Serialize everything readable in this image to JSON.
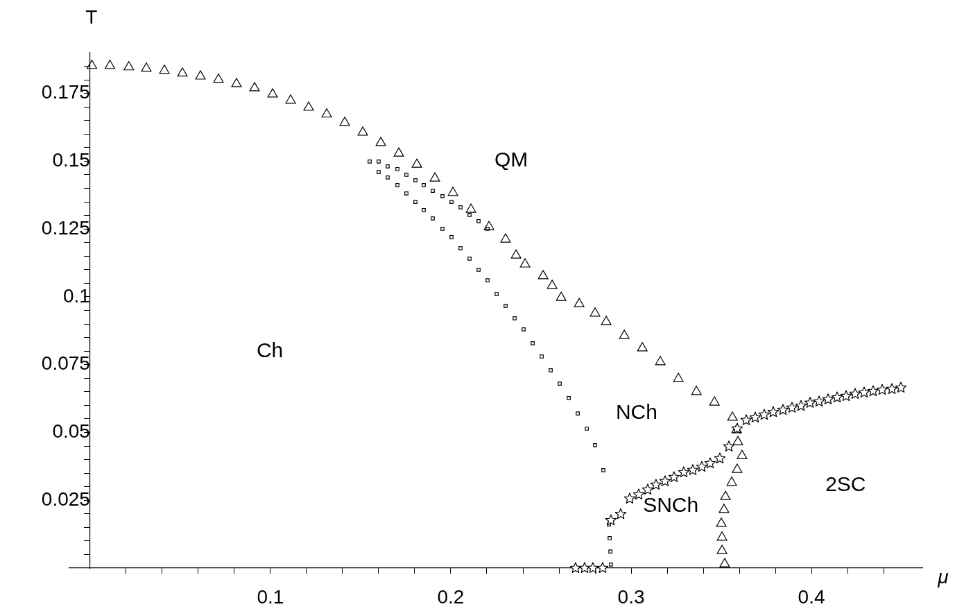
{
  "chart_data": {
    "type": "scatter",
    "xlabel": "μ",
    "ylabel": "T",
    "xlim": [
      -0.0115,
      0.4615
    ],
    "ylim": [
      0,
      0.19
    ],
    "xticks": [
      {
        "value": 0.02,
        "label": null
      },
      {
        "value": 0.04,
        "label": null
      },
      {
        "value": 0.06,
        "label": null
      },
      {
        "value": 0.08,
        "label": null
      },
      0.1,
      {
        "value": 0.12,
        "label": null
      },
      {
        "value": 0.14,
        "label": null
      },
      {
        "value": 0.16,
        "label": null
      },
      {
        "value": 0.18,
        "label": null
      },
      0.2,
      {
        "value": 0.22,
        "label": null
      },
      {
        "value": 0.24,
        "label": null
      },
      {
        "value": 0.26,
        "label": null
      },
      {
        "value": 0.28,
        "label": null
      },
      0.3,
      {
        "value": 0.32,
        "label": null
      },
      {
        "value": 0.34,
        "label": null
      },
      {
        "value": 0.36,
        "label": null
      },
      {
        "value": 0.38,
        "label": null
      },
      0.4,
      {
        "value": 0.42,
        "label": null
      },
      {
        "value": 0.44,
        "label": null
      }
    ],
    "yticks": [
      {
        "value": 0.005,
        "label": null
      },
      {
        "value": 0.01,
        "label": null
      },
      {
        "value": 0.015,
        "label": null
      },
      {
        "value": 0.02,
        "label": null
      },
      0.025,
      {
        "value": 0.03,
        "label": null
      },
      {
        "value": 0.035,
        "label": null
      },
      {
        "value": 0.04,
        "label": null
      },
      {
        "value": 0.045,
        "label": null
      },
      0.05,
      {
        "value": 0.055,
        "label": null
      },
      {
        "value": 0.06,
        "label": null
      },
      {
        "value": 0.065,
        "label": null
      },
      {
        "value": 0.07,
        "label": null
      },
      0.075,
      {
        "value": 0.08,
        "label": null
      },
      {
        "value": 0.085,
        "label": null
      },
      {
        "value": 0.09,
        "label": null
      },
      {
        "value": 0.095,
        "label": null
      },
      0.1,
      {
        "value": 0.105,
        "label": null
      },
      {
        "value": 0.11,
        "label": null
      },
      {
        "value": 0.115,
        "label": null
      },
      {
        "value": 0.12,
        "label": null
      },
      0.125,
      {
        "value": 0.13,
        "label": null
      },
      {
        "value": 0.135,
        "label": null
      },
      {
        "value": 0.14,
        "label": null
      },
      {
        "value": 0.145,
        "label": null
      },
      0.15,
      {
        "value": 0.155,
        "label": null
      },
      {
        "value": 0.16,
        "label": null
      },
      {
        "value": 0.165,
        "label": null
      },
      {
        "value": 0.17,
        "label": null
      },
      0.175,
      {
        "value": 0.18,
        "label": null
      },
      {
        "value": 0.185,
        "label": null
      }
    ],
    "grid": false,
    "legend": false,
    "series": [
      {
        "marker": "triangle",
        "color": "#000000",
        "x": [
          0.001,
          0.011,
          0.0215,
          0.0312,
          0.0412,
          0.0512,
          0.0612,
          0.0712,
          0.0812,
          0.0912,
          0.1012,
          0.1112,
          0.1212,
          0.1312,
          0.1412,
          0.1512,
          0.1612,
          0.1712,
          0.1812,
          0.1912,
          0.2012,
          0.2112,
          0.2212,
          0.2304,
          0.2362,
          0.2412,
          0.2512,
          0.2562,
          0.2612,
          0.2712,
          0.28,
          0.2862,
          0.2962,
          0.3062,
          0.3162,
          0.3262,
          0.3362,
          0.3462,
          0.3562,
          0.3585,
          0.3592,
          0.3615,
          0.3588,
          0.3558,
          0.3523,
          0.3515,
          0.35,
          0.3504,
          0.3504,
          0.3519
        ],
        "values": [
          0.1852,
          0.1852,
          0.1847,
          0.1842,
          0.1834,
          0.1824,
          0.1813,
          0.1801,
          0.1785,
          0.177,
          0.1747,
          0.1724,
          0.1698,
          0.1673,
          0.1642,
          0.1606,
          0.1568,
          0.1529,
          0.1488,
          0.1437,
          0.1384,
          0.1322,
          0.1258,
          0.1212,
          0.1153,
          0.112,
          0.1077,
          0.1041,
          0.0997,
          0.0974,
          0.0939,
          0.0908,
          0.0857,
          0.0811,
          0.076,
          0.0698,
          0.065,
          0.0611,
          0.0555,
          0.0509,
          0.0465,
          0.0414,
          0.0363,
          0.0315,
          0.0263,
          0.0215,
          0.0164,
          0.0113,
          0.0064,
          0.0015
        ]
      },
      {
        "marker": "square",
        "color": "#000000",
        "x": [
          0.155,
          0.16,
          0.165,
          0.1704,
          0.1754,
          0.1804,
          0.185,
          0.19,
          0.1954,
          0.2004,
          0.2054,
          0.2104,
          0.2154,
          0.2204,
          0.16,
          0.165,
          0.1704,
          0.1754,
          0.1804,
          0.185,
          0.19,
          0.1954,
          0.2004,
          0.2054,
          0.2104,
          0.2154,
          0.2204,
          0.2254,
          0.2304,
          0.2354,
          0.2404,
          0.2454,
          0.2504,
          0.2554,
          0.2604,
          0.2654,
          0.2704,
          0.2754,
          0.28,
          0.2846,
          0.2877,
          0.2881,
          0.2885,
          0.2888
        ],
        "values": [
          0.1499,
          0.1499,
          0.1481,
          0.1471,
          0.145,
          0.143,
          0.1412,
          0.1391,
          0.1371,
          0.135,
          0.133,
          0.1302,
          0.1279,
          0.1251,
          0.146,
          0.144,
          0.1412,
          0.1381,
          0.135,
          0.132,
          0.1289,
          0.1251,
          0.122,
          0.1179,
          0.1141,
          0.11,
          0.1061,
          0.101,
          0.0967,
          0.0921,
          0.088,
          0.0829,
          0.078,
          0.0729,
          0.068,
          0.0627,
          0.057,
          0.0514,
          0.0453,
          0.0361,
          0.0161,
          0.011,
          0.0061,
          0.0013
        ]
      },
      {
        "marker": "star",
        "color": "#000000",
        "x": [
          0.2692,
          0.2742,
          0.2788,
          0.2842,
          0.2888,
          0.2942,
          0.2992,
          0.3042,
          0.3092,
          0.3138,
          0.3188,
          0.3238,
          0.3292,
          0.3342,
          0.3392,
          0.3438,
          0.3492,
          0.3542,
          0.3588,
          0.3638,
          0.3688,
          0.3738,
          0.3788,
          0.3842,
          0.3892,
          0.3942,
          0.3992,
          0.4042,
          0.4092,
          0.4142,
          0.4192,
          0.4242,
          0.4292,
          0.4342,
          0.4392,
          0.4446,
          0.4496
        ],
        "values": [
          0,
          0,
          0,
          0,
          0.0176,
          0.0199,
          0.0256,
          0.0271,
          0.0289,
          0.0307,
          0.032,
          0.0335,
          0.0353,
          0.0361,
          0.0373,
          0.0386,
          0.0404,
          0.0448,
          0.0514,
          0.0545,
          0.0555,
          0.0565,
          0.0575,
          0.0583,
          0.0591,
          0.0598,
          0.0609,
          0.0614,
          0.0622,
          0.0629,
          0.0634,
          0.0642,
          0.0647,
          0.0652,
          0.0657,
          0.066,
          0.0665
        ]
      }
    ],
    "annotations": [
      "QM",
      "Ch",
      "NCh",
      "SNCh",
      "2SC"
    ]
  }
}
